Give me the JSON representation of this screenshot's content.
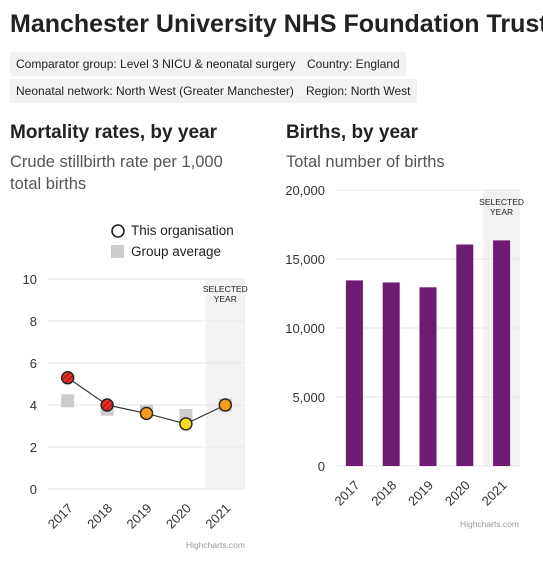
{
  "page": {
    "title": "Manchester University NHS Foundation Trust",
    "tags": {
      "comparator": "Comparator group: Level 3 NICU & neonatal surgery",
      "country": "Country: England",
      "network": "Neonatal network: North West (Greater Manchester)",
      "region": "Region: North West"
    }
  },
  "left": {
    "heading": "Mortality rates, by year",
    "subtitle": "Crude stillbirth rate per 1,000 total births",
    "credit": "Highcharts.com"
  },
  "right": {
    "heading": "Births, by year",
    "subtitle": "Total number of births",
    "credit": "Highcharts.com"
  },
  "chart_data": [
    {
      "type": "line",
      "title": "Mortality rates, by year",
      "subtitle": "Crude stillbirth rate per 1,000 total births",
      "categories": [
        "2017",
        "2018",
        "2019",
        "2020",
        "2021"
      ],
      "series": [
        {
          "name": "This organisation",
          "values": [
            5.3,
            4.0,
            3.6,
            3.1,
            4.0
          ],
          "point_colors": [
            "#e8302a",
            "#e8302a",
            "#f59c1a",
            "#f5dc1a",
            "#f59c1a"
          ],
          "hatched": [
            true,
            true,
            false,
            false,
            false
          ]
        },
        {
          "name": "Group average",
          "values": [
            4.2,
            3.8,
            3.7,
            3.5,
            4.0
          ],
          "color": "#cccccc"
        }
      ],
      "ylim": [
        0,
        10
      ],
      "yticks": [
        0,
        2,
        4,
        6,
        8,
        10
      ],
      "legend": "top",
      "highlight": {
        "category": "2021",
        "label": [
          "SELECTED",
          "YEAR"
        ]
      }
    },
    {
      "type": "bar",
      "title": "Births, by year",
      "subtitle": "Total number of births",
      "categories": [
        "2017",
        "2018",
        "2019",
        "2020",
        "2021"
      ],
      "values": [
        13450,
        13300,
        12950,
        16050,
        16350
      ],
      "color": "#6e1b74",
      "ylim": [
        0,
        20000
      ],
      "yticks": [
        0,
        5000,
        10000,
        15000,
        20000
      ],
      "ytick_labels": [
        "0",
        "5,000",
        "10,000",
        "15,000",
        "20,000"
      ],
      "highlight": {
        "category": "2021",
        "label": [
          "SELECTED",
          "YEAR"
        ]
      }
    }
  ]
}
